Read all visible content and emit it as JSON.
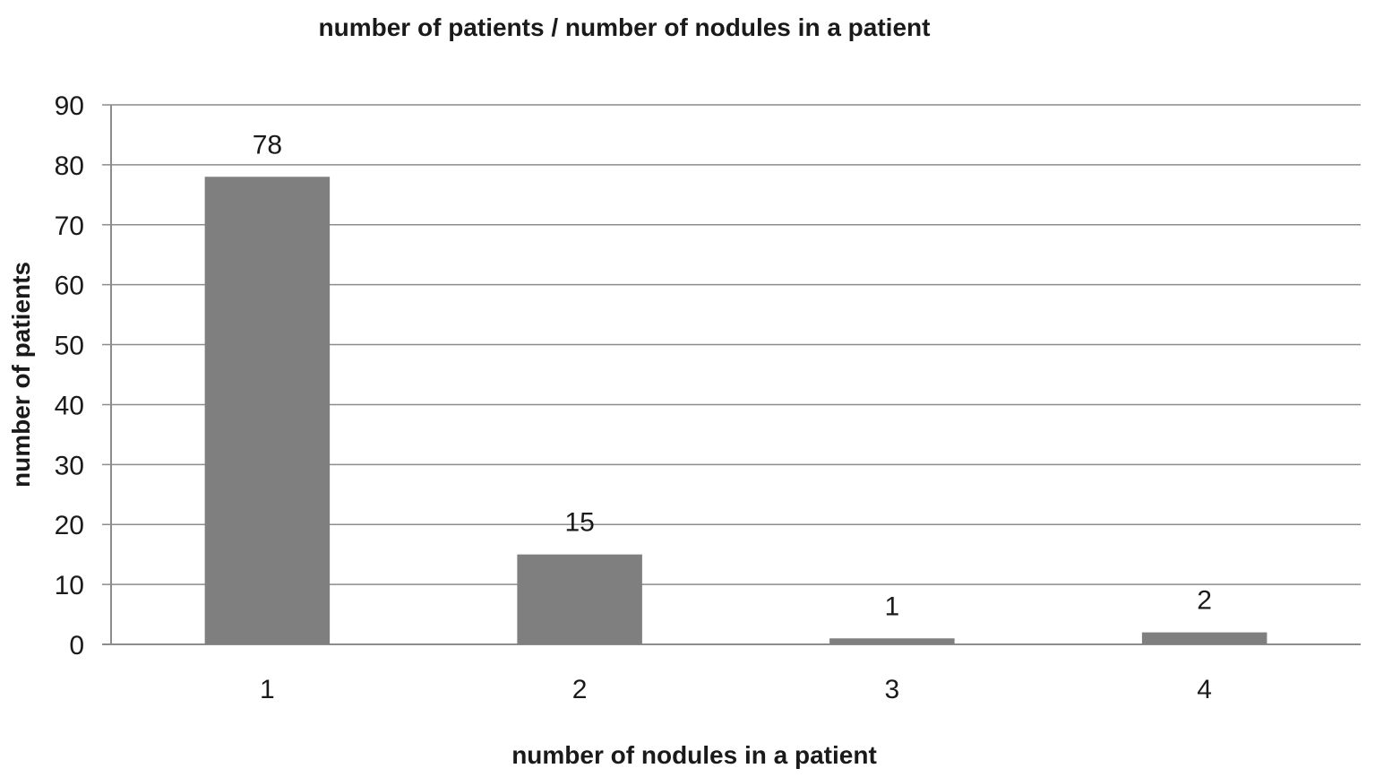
{
  "chart_data": {
    "type": "bar",
    "title": "number of patients / number of nodules in a patient",
    "xlabel": "number of nodules in a patient",
    "ylabel": "number of patients",
    "categories": [
      "1",
      "2",
      "3",
      "4"
    ],
    "values": [
      78,
      15,
      1,
      2
    ],
    "data_labels": [
      "78",
      "15",
      "1",
      "2"
    ],
    "yticks": [
      "0",
      "10",
      "20",
      "30",
      "40",
      "50",
      "60",
      "70",
      "80",
      "90"
    ],
    "ylim": [
      0,
      90
    ],
    "grid": true,
    "legend": "none",
    "colors": {
      "bar": "#7f7f7f",
      "grid": "#8c8c8c",
      "text": "#1a1a1a"
    }
  }
}
